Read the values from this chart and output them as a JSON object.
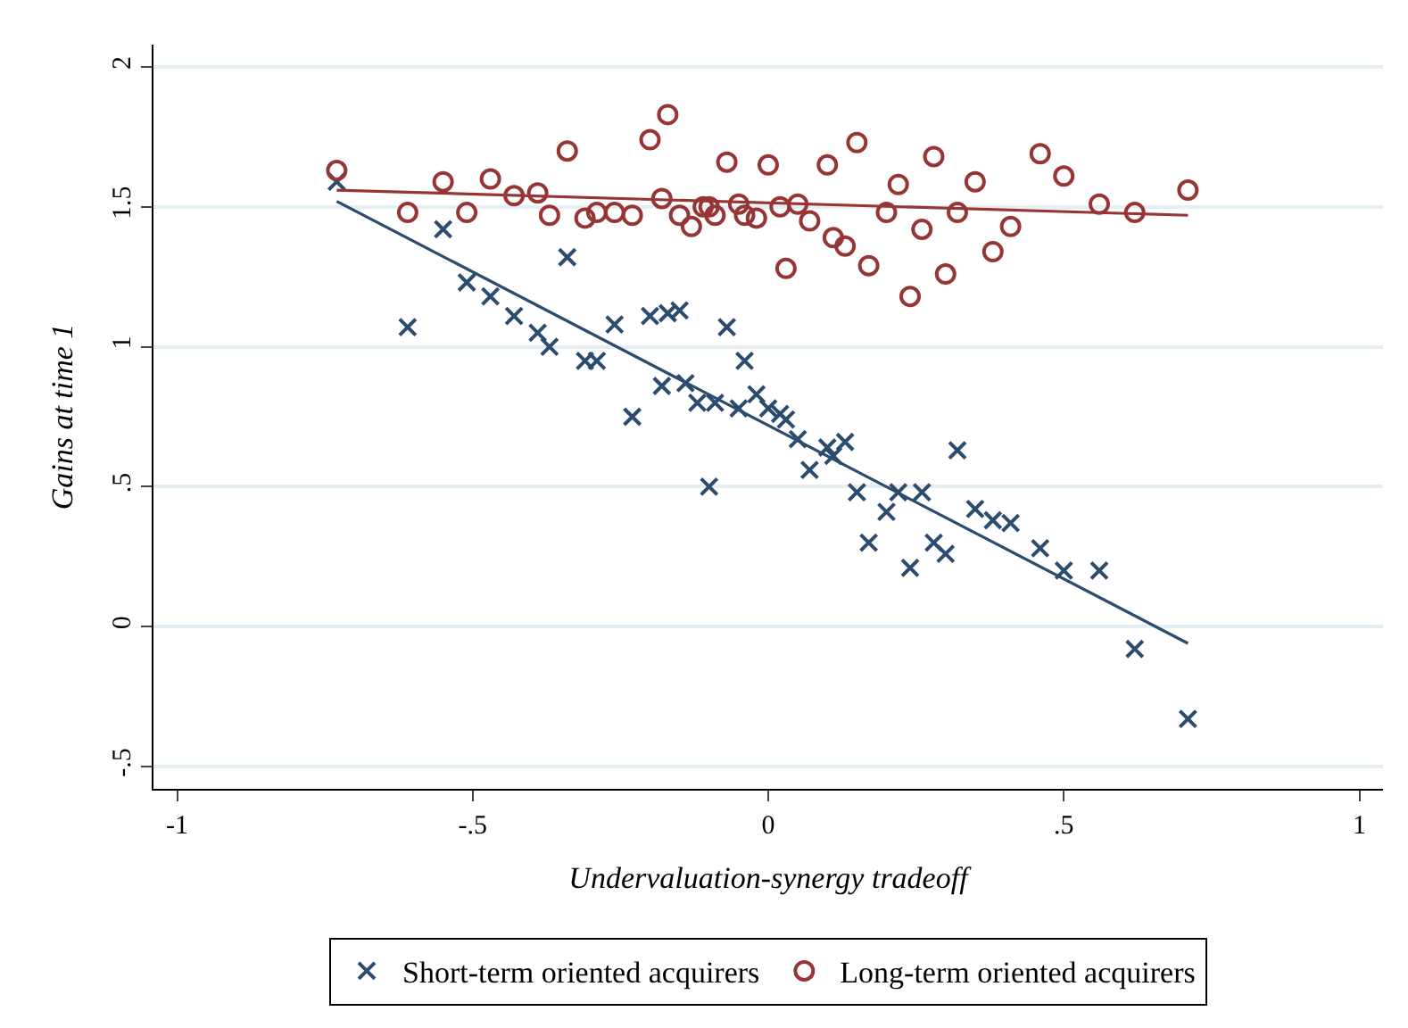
{
  "chart_data": {
    "type": "scatter",
    "xlabel": "Undervaluation-synergy tradeoff",
    "ylabel": "Gains at time 1",
    "xlim": [
      -1.04,
      1.04
    ],
    "xticks": [
      -1,
      {
        "value": -0.5,
        "label": "-.5"
      },
      0,
      {
        "value": 0.5,
        "label": ".5"
      },
      1
    ],
    "ylim": [
      -0.58,
      2.08
    ],
    "yticks": [
      {
        "value": -0.5,
        "label": "-.5"
      },
      0,
      {
        "value": 0.5,
        "label": ".5"
      },
      1,
      1.5,
      2
    ],
    "grid": "y",
    "legend": "bottom",
    "series": [
      {
        "name": "Short-term oriented acquirers",
        "color": "#2b4b6f",
        "marker": "cross",
        "x": [
          -0.73,
          -0.61,
          -0.55,
          -0.51,
          -0.47,
          -0.43,
          -0.39,
          -0.37,
          -0.34,
          -0.31,
          -0.29,
          -0.26,
          -0.2,
          -0.17,
          -0.15,
          -0.07,
          -0.04,
          -0.23,
          -0.18,
          -0.14,
          -0.12,
          -0.09,
          -0.1,
          -0.05,
          -0.02,
          0.0,
          0.02,
          0.03,
          0.05,
          0.07,
          0.1,
          0.11,
          0.13,
          0.15,
          0.17,
          0.2,
          0.22,
          0.24,
          0.26,
          0.28,
          0.3,
          0.32,
          0.35,
          0.38,
          0.41,
          0.46,
          0.5,
          0.56,
          0.62,
          0.71
        ],
        "values": [
          1.59,
          1.07,
          1.42,
          1.23,
          1.18,
          1.11,
          1.05,
          1.0,
          1.32,
          0.95,
          0.95,
          1.08,
          1.11,
          1.12,
          1.13,
          1.07,
          0.95,
          0.75,
          0.86,
          0.87,
          0.8,
          0.8,
          0.5,
          0.78,
          0.83,
          0.78,
          0.76,
          0.74,
          0.67,
          0.56,
          0.64,
          0.61,
          0.66,
          0.48,
          0.3,
          0.41,
          0.48,
          0.21,
          0.48,
          0.3,
          0.26,
          0.63,
          0.42,
          0.38,
          0.37,
          0.28,
          0.2,
          0.2,
          -0.08,
          -0.33
        ]
      },
      {
        "name": "Long-term oriented acquirers",
        "color": "#973535",
        "marker": "circle",
        "x": [
          -0.73,
          -0.61,
          -0.55,
          -0.51,
          -0.47,
          -0.43,
          -0.39,
          -0.37,
          -0.34,
          -0.31,
          -0.29,
          -0.26,
          -0.23,
          -0.2,
          -0.17,
          -0.18,
          -0.15,
          -0.13,
          -0.11,
          -0.1,
          -0.09,
          -0.07,
          -0.05,
          -0.04,
          -0.02,
          0.0,
          0.02,
          0.03,
          0.05,
          0.07,
          0.1,
          0.11,
          0.13,
          0.15,
          0.17,
          0.2,
          0.22,
          0.24,
          0.26,
          0.28,
          0.3,
          0.32,
          0.35,
          0.38,
          0.41,
          0.46,
          0.5,
          0.56,
          0.62,
          0.71
        ],
        "values": [
          1.63,
          1.48,
          1.59,
          1.48,
          1.6,
          1.54,
          1.55,
          1.47,
          1.7,
          1.46,
          1.48,
          1.48,
          1.47,
          1.74,
          1.83,
          1.53,
          1.47,
          1.43,
          1.5,
          1.5,
          1.47,
          1.66,
          1.51,
          1.47,
          1.46,
          1.65,
          1.5,
          1.28,
          1.51,
          1.45,
          1.65,
          1.39,
          1.36,
          1.73,
          1.29,
          1.48,
          1.58,
          1.18,
          1.42,
          1.68,
          1.26,
          1.48,
          1.59,
          1.34,
          1.43,
          1.69,
          1.61,
          1.51,
          1.48,
          1.56
        ]
      },
      {
        "type": "line",
        "color": "#2b4b6f",
        "marker": "none",
        "x": [
          -0.73,
          0.71
        ],
        "values": [
          1.52,
          -0.06
        ]
      },
      {
        "type": "line",
        "color": "#973535",
        "marker": "none",
        "x": [
          -0.73,
          0.71
        ],
        "values": [
          1.56,
          1.47
        ]
      }
    ]
  }
}
